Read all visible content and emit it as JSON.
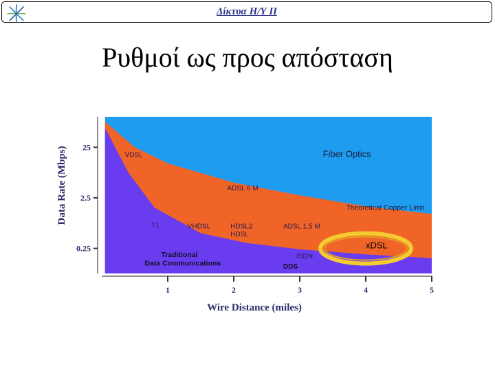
{
  "header": {
    "title": "Δίκτυα Η/Υ ΙΙ"
  },
  "slide": {
    "title": "Ρυθμοί ως προς απόσταση"
  },
  "colors": {
    "fiber": "#1e9cf0",
    "copper": "#f06428",
    "traditional": "#6a3cf0",
    "xdsl_highlight": "#f5cc30",
    "axis_text": "#2a2a6a",
    "header_title": "#2a2f8a"
  },
  "chart_data": {
    "type": "area",
    "xlabel": "Wire Distance (miles)",
    "ylabel": "Data Rate (Mbps)",
    "x_ticks": [
      "1",
      "2",
      "3",
      "4",
      "5"
    ],
    "y_ticks": [
      "0.25",
      "2.5",
      "25"
    ],
    "y_scale": "log",
    "x_range": [
      0,
      5
    ],
    "y_range": [
      0.08,
      100
    ],
    "regions": [
      {
        "name": "Fiber Optics"
      },
      {
        "name": "Theoretical Copper Limit"
      },
      {
        "name": "Traditional Data Communications"
      }
    ],
    "copper_limit_curve": {
      "x": [
        0.05,
        0.5,
        1,
        2,
        3,
        4,
        5
      ],
      "y": [
        80,
        25,
        12,
        5,
        2.8,
        1.7,
        1.2
      ]
    },
    "traditional_curve": {
      "x": [
        0.05,
        0.4,
        0.8,
        1.5,
        2.2,
        3,
        4,
        5
      ],
      "y": [
        60,
        8,
        1.6,
        0.5,
        0.32,
        0.24,
        0.19,
        0.16
      ]
    },
    "annotations": [
      {
        "text": "VDSL",
        "x": 0.35,
        "y": 16
      },
      {
        "text": "ADSL 6 M",
        "x": 1.9,
        "y": 3.5
      },
      {
        "text": "Fiber Optics",
        "x": 3.35,
        "y": 16
      },
      {
        "text": "Theoretical Copper Limit",
        "x": 3.7,
        "y": 1.45
      },
      {
        "text": "T1",
        "x": 0.75,
        "y": 0.65
      },
      {
        "text": "VHDSL",
        "x": 1.3,
        "y": 0.62
      },
      {
        "text": "HDSL2",
        "x": 1.95,
        "y": 0.62
      },
      {
        "text": "HDSL",
        "x": 1.95,
        "y": 0.43
      },
      {
        "text": "ADSL 1.5 M",
        "x": 2.75,
        "y": 0.62
      },
      {
        "text": "xDSL",
        "x": 4.0,
        "y": 0.25
      },
      {
        "text": "ISDN",
        "x": 2.95,
        "y": 0.16
      },
      {
        "text": "Traditional",
        "x": 0.9,
        "y": 0.17
      },
      {
        "text": "Data Communications",
        "x": 0.65,
        "y": 0.115
      },
      {
        "text": "DDS",
        "x": 2.75,
        "y": 0.1
      }
    ]
  }
}
